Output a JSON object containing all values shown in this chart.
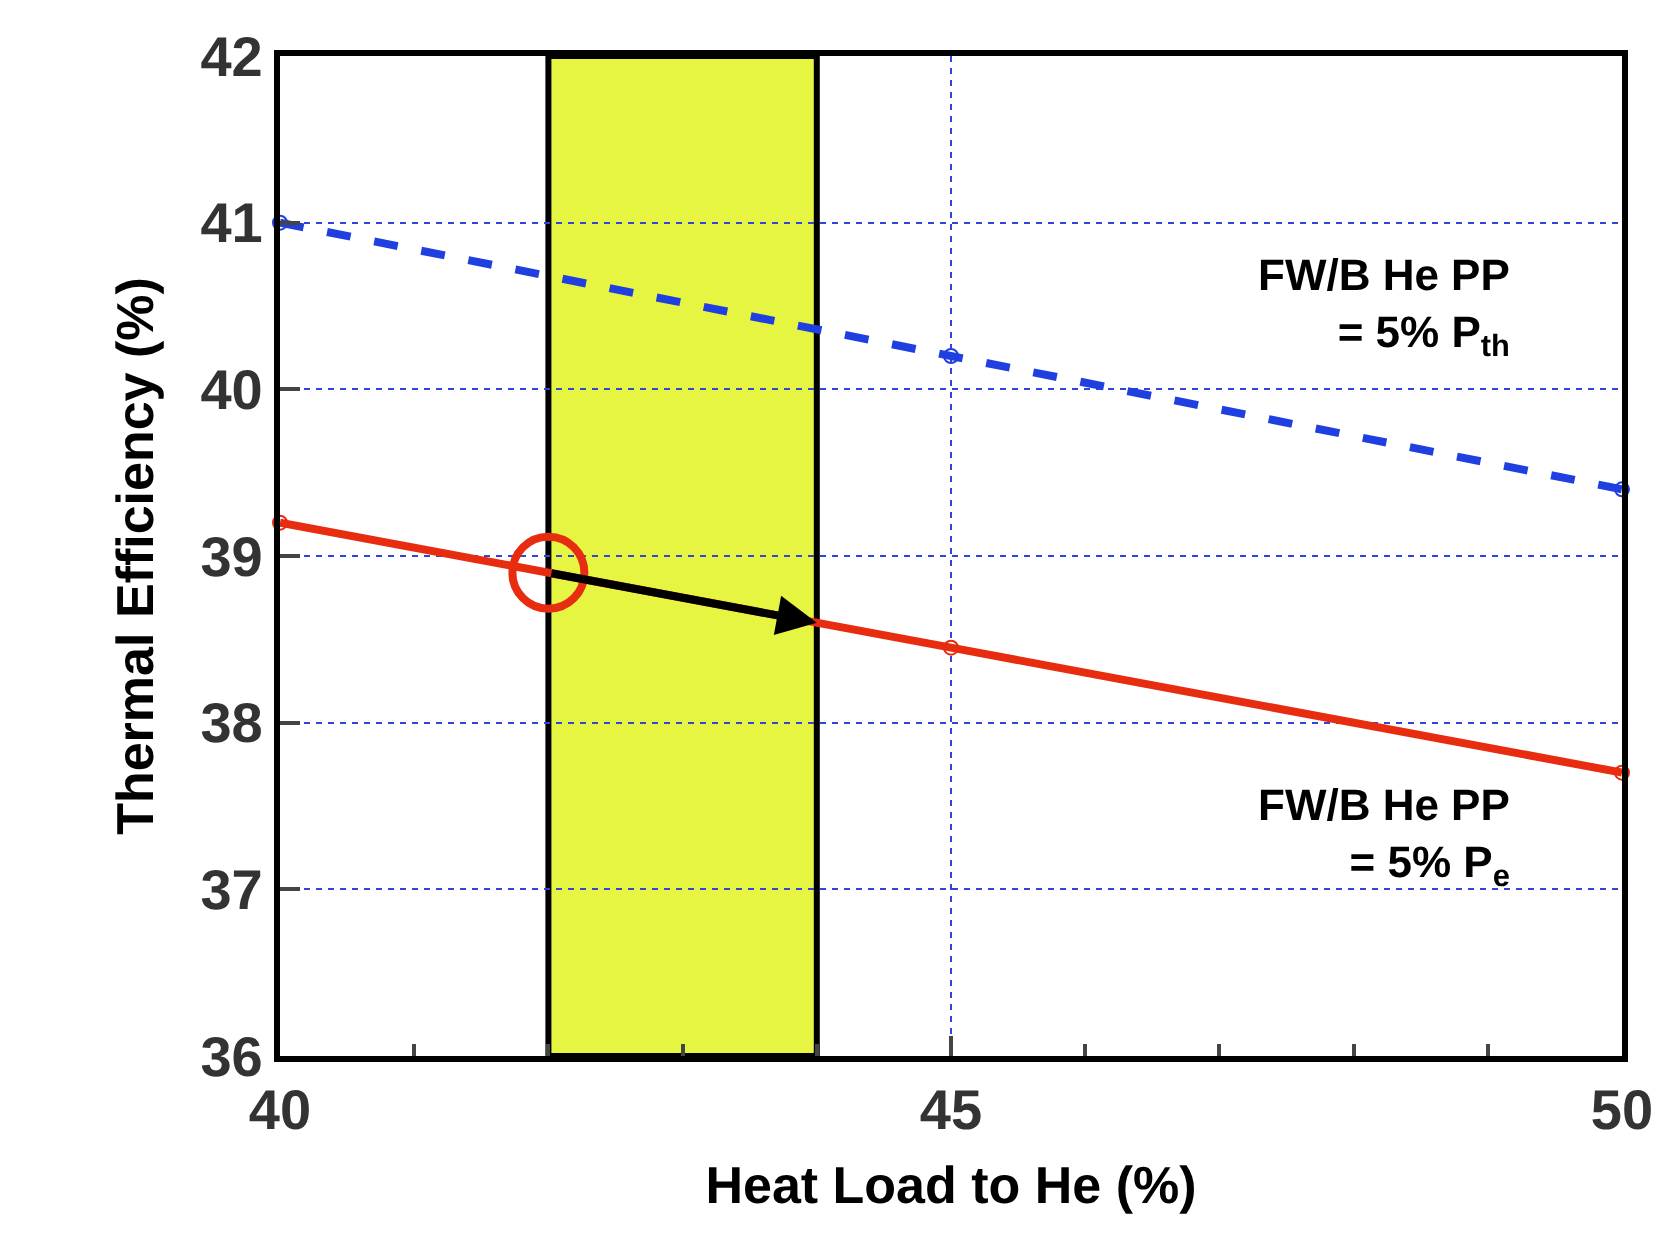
{
  "chart_data": {
    "type": "line",
    "xlabel": "Heat Load to He (%)",
    "ylabel": "Thermal Efficiency (%)",
    "x": [
      40,
      45,
      50
    ],
    "series": [
      {
        "color": "#1f3fe0",
        "values": [
          41.0,
          40.2,
          39.4
        ],
        "line_style": "dashed"
      },
      {
        "color": "#e82c10",
        "values": [
          39.2,
          38.45,
          37.7
        ],
        "line_style": "solid"
      },
      {
        "type": "scatter",
        "color": "#e82c10",
        "x": [
          42
        ],
        "values": [
          38.9
        ]
      }
    ],
    "marker": "circle",
    "xlim": [
      40,
      50
    ],
    "xticks": [
      40,
      45,
      50
    ],
    "ylim": [
      36,
      42
    ],
    "yticks": [
      36,
      37,
      38,
      39,
      40,
      41,
      42
    ],
    "grid": true,
    "bands": [
      {
        "axis": "x",
        "from": 42,
        "to": 44,
        "color": "#e6f542"
      }
    ],
    "annotations": [
      "FW/B He PP\n= 5% P$_{th}$",
      "FW/B He PP\n= 5% P$_{e}$"
    ]
  }
}
